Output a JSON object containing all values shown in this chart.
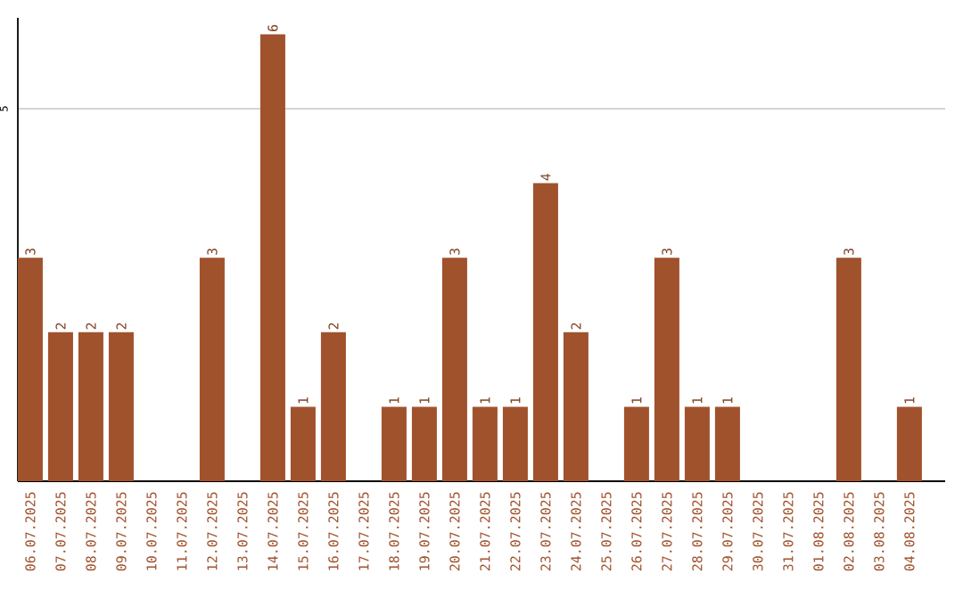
{
  "chart_data": {
    "type": "bar",
    "categories": [
      "06.07.2025",
      "07.07.2025",
      "08.07.2025",
      "09.07.2025",
      "10.07.2025",
      "11.07.2025",
      "12.07.2025",
      "13.07.2025",
      "14.07.2025",
      "15.07.2025",
      "16.07.2025",
      "17.07.2025",
      "18.07.2025",
      "19.07.2025",
      "20.07.2025",
      "21.07.2025",
      "22.07.2025",
      "23.07.2025",
      "24.07.2025",
      "25.07.2025",
      "26.07.2025",
      "27.07.2025",
      "28.07.2025",
      "29.07.2025",
      "30.07.2025",
      "31.07.2025",
      "01.08.2025",
      "02.08.2025",
      "03.08.2025",
      "04.08.2025"
    ],
    "values": [
      3,
      2,
      2,
      2,
      0,
      0,
      3,
      0,
      6,
      1,
      2,
      0,
      1,
      1,
      3,
      1,
      1,
      4,
      2,
      0,
      1,
      3,
      1,
      1,
      0,
      0,
      0,
      3,
      0,
      1
    ],
    "value_labels": [
      "3",
      "2",
      "2",
      "2",
      null,
      null,
      "3",
      null,
      "6",
      "1",
      "2",
      null,
      "1",
      "1",
      "3",
      "1",
      "1",
      "4",
      "2",
      null,
      "1",
      "3",
      "1",
      "1",
      null,
      null,
      null,
      "3",
      null,
      "1"
    ],
    "color": "#a0522d",
    "ylim": [
      0,
      6.22
    ],
    "yticks": [
      5
    ],
    "grid": "y"
  }
}
